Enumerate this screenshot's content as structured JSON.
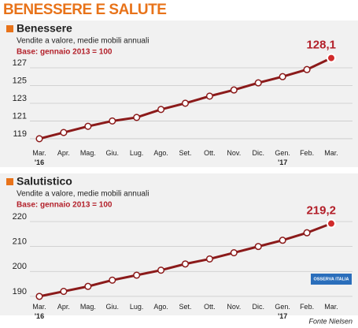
{
  "title": "BENESSERE E SALUTE",
  "source": "Fonte Nielsen",
  "logo": "OSSERVA ITALIA",
  "chart_data": [
    {
      "type": "line",
      "title": "Benessere",
      "subtitle": "Vendite a valore, medie mobili annuali",
      "note": "Base: gennaio 2013 = 100",
      "categories": [
        "Mar. '16",
        "Apr.",
        "Mag.",
        "Giu.",
        "Lug.",
        "Ago.",
        "Set.",
        "Ott.",
        "Nov.",
        "Dic.",
        "Gen. '17",
        "Feb.",
        "Mar."
      ],
      "values": [
        119.0,
        119.7,
        120.4,
        121.0,
        121.4,
        122.3,
        123.0,
        123.8,
        124.5,
        125.3,
        126.0,
        126.8,
        128.1
      ],
      "value_labels": [
        null,
        null,
        null,
        null,
        null,
        null,
        null,
        null,
        null,
        null,
        null,
        null,
        "128,1"
      ],
      "color": "#8b1a1a",
      "ylim": [
        118.64,
        129.31
      ],
      "yticks": [
        119,
        121,
        123,
        125,
        127
      ],
      "grid": true
    },
    {
      "type": "line",
      "title": "Salutistico",
      "subtitle": "Vendite a valore, medie mobili annuali",
      "note": "Base: gennaio 2013 = 100",
      "categories": [
        "Mar. '16",
        "Apr.",
        "Mag.",
        "Giu.",
        "Lug.",
        "Ago.",
        "Set.",
        "Ott.",
        "Nov.",
        "Dic.",
        "Gen. '17",
        "Feb.",
        "Mar."
      ],
      "values": [
        190.0,
        192.0,
        194.0,
        196.5,
        198.5,
        200.5,
        203.0,
        205.0,
        207.5,
        210.0,
        212.5,
        215.5,
        219.2
      ],
      "value_labels": [
        null,
        null,
        null,
        null,
        null,
        null,
        null,
        null,
        null,
        null,
        null,
        null,
        "219,2"
      ],
      "color": "#8b1a1a",
      "ylim": [
        188.7,
        229.8
      ],
      "yticks": [
        190,
        200,
        210,
        220
      ],
      "grid": true
    }
  ]
}
